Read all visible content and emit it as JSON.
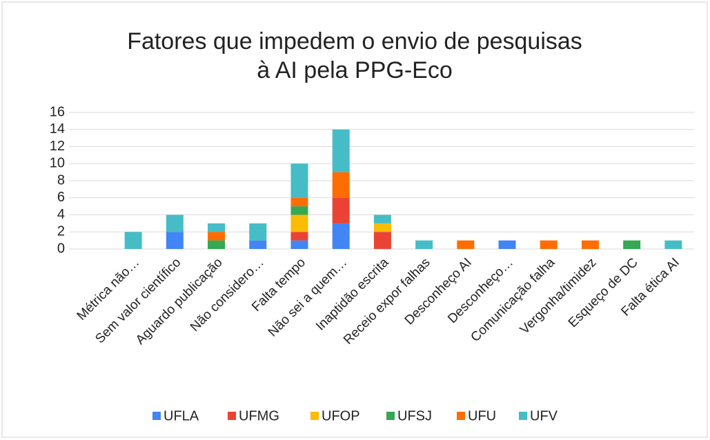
{
  "chart_data": {
    "type": "stacked_bar",
    "title": [
      "Fatores que impedem o envio de pesquisas",
      "à AI pela PPG-Eco"
    ],
    "categories": [
      "Métrica não…",
      "Sem valor científico",
      "Aguardo publicação",
      "Não considero…",
      "Falta tempo",
      "Não sei a quem…",
      "Inaptidão escrita",
      "Receio expor falhas",
      "Desconheço AI",
      "Desconheço…",
      "Comunicação falha",
      "Vergonha/timidez",
      "Esqueço de DC",
      "Falta ética AI"
    ],
    "series": [
      {
        "name": "UFLA",
        "color": "#4285f4",
        "values": [
          0,
          2,
          0,
          1,
          1,
          3,
          0,
          0,
          0,
          1,
          0,
          0,
          0,
          0
        ]
      },
      {
        "name": "UFMG",
        "color": "#ea4335",
        "values": [
          0,
          0,
          0,
          0,
          1,
          3,
          2,
          0,
          0,
          0,
          0,
          0,
          0,
          0
        ]
      },
      {
        "name": "UFOP",
        "color": "#fbbc04",
        "values": [
          0,
          0,
          0,
          0,
          2,
          0,
          1,
          0,
          0,
          0,
          0,
          0,
          0,
          0
        ]
      },
      {
        "name": "UFSJ",
        "color": "#34a853",
        "values": [
          0,
          0,
          1,
          0,
          1,
          0,
          0,
          0,
          0,
          0,
          0,
          0,
          1,
          0
        ]
      },
      {
        "name": "UFU",
        "color": "#ff6d01",
        "values": [
          0,
          0,
          1,
          0,
          1,
          3,
          0,
          0,
          1,
          0,
          1,
          1,
          0,
          0
        ]
      },
      {
        "name": "UFV",
        "color": "#46bdc6",
        "values": [
          2,
          2,
          1,
          2,
          4,
          5,
          1,
          1,
          0,
          0,
          0,
          0,
          0,
          1
        ]
      }
    ],
    "ylim": [
      0,
      16
    ],
    "yticks": [
      0,
      2,
      4,
      6,
      8,
      10,
      12,
      14,
      16
    ],
    "grid": true,
    "legend": "bottom"
  }
}
